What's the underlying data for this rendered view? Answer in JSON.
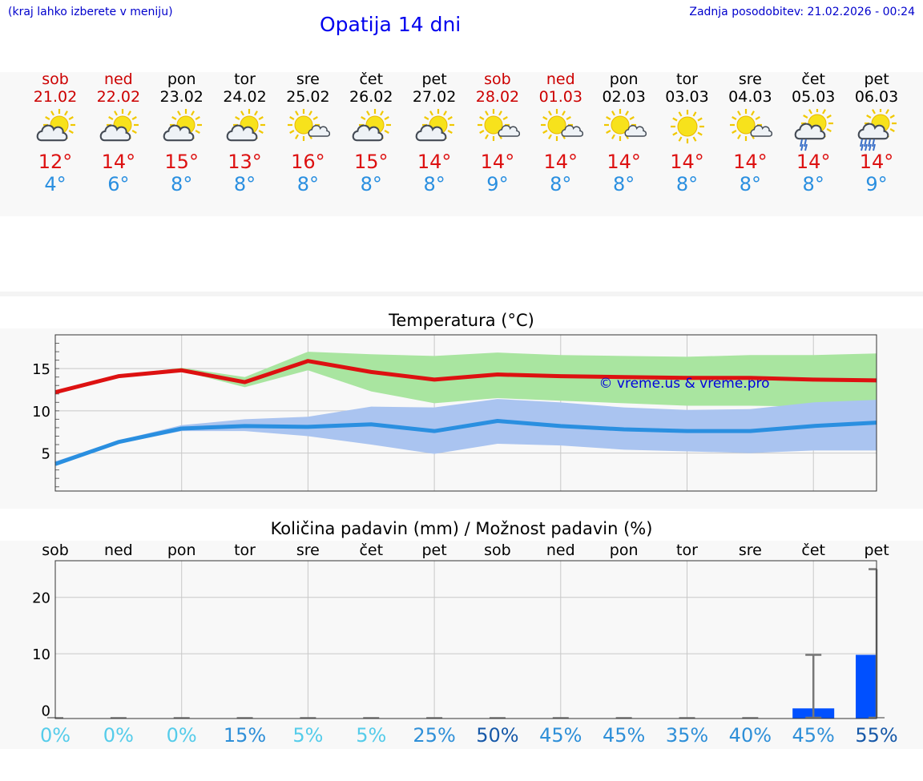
{
  "header": {
    "hint": "(kraj lahko izberete v meniju)",
    "title": "Opatija 14 dni",
    "updated": "Zadnja posodobitev: 21.02.2026 - 00:24"
  },
  "colors": {
    "max_temp": "#dd1111",
    "min_temp": "#2a8fe0",
    "max_band": "#a9e5a0",
    "min_band": "#aac4f0",
    "precip_bar": "#0050ff"
  },
  "days": [
    {
      "name": "sob",
      "date": "21.02",
      "weekend": true,
      "max": "12°",
      "min": "4°",
      "icon": "sun-cloud-icon"
    },
    {
      "name": "ned",
      "date": "22.02",
      "weekend": true,
      "max": "14°",
      "min": "6°",
      "icon": "sun-cloud-icon"
    },
    {
      "name": "pon",
      "date": "23.02",
      "weekend": false,
      "max": "15°",
      "min": "8°",
      "icon": "sun-cloud-icon"
    },
    {
      "name": "tor",
      "date": "24.02",
      "weekend": false,
      "max": "13°",
      "min": "8°",
      "icon": "sun-cloud-icon"
    },
    {
      "name": "sre",
      "date": "25.02",
      "weekend": false,
      "max": "16°",
      "min": "8°",
      "icon": "sun-small-cloud-icon"
    },
    {
      "name": "čet",
      "date": "26.02",
      "weekend": false,
      "max": "15°",
      "min": "8°",
      "icon": "sun-cloud-icon"
    },
    {
      "name": "pet",
      "date": "27.02",
      "weekend": false,
      "max": "14°",
      "min": "8°",
      "icon": "sun-cloud-icon"
    },
    {
      "name": "sob",
      "date": "28.02",
      "weekend": true,
      "max": "14°",
      "min": "9°",
      "icon": "sun-small-cloud-icon"
    },
    {
      "name": "ned",
      "date": "01.03",
      "weekend": true,
      "max": "14°",
      "min": "8°",
      "icon": "sun-small-cloud-icon"
    },
    {
      "name": "pon",
      "date": "02.03",
      "weekend": false,
      "max": "14°",
      "min": "8°",
      "icon": "sun-small-cloud-icon"
    },
    {
      "name": "tor",
      "date": "03.03",
      "weekend": false,
      "max": "14°",
      "min": "8°",
      "icon": "sun-icon"
    },
    {
      "name": "sre",
      "date": "04.03",
      "weekend": false,
      "max": "14°",
      "min": "8°",
      "icon": "sun-small-cloud-icon"
    },
    {
      "name": "čet",
      "date": "05.03",
      "weekend": false,
      "max": "14°",
      "min": "8°",
      "icon": "sun-cloud-light-rain-icon"
    },
    {
      "name": "pet",
      "date": "06.03",
      "weekend": false,
      "max": "14°",
      "min": "9°",
      "icon": "sun-cloud-rain-icon"
    }
  ],
  "chart_data": [
    {
      "type": "line",
      "title": "Temperatura (°C)",
      "watermark": "© vreme.us & vreme.pro",
      "x": [
        "sob",
        "ned",
        "pon",
        "tor",
        "sre",
        "čet",
        "pet",
        "sob",
        "ned",
        "pon",
        "tor",
        "sre",
        "čet",
        "pet"
      ],
      "ylim": [
        0.5,
        19
      ],
      "yticks": [
        5,
        10,
        15
      ],
      "series": [
        {
          "name": "max",
          "values": [
            12.2,
            14.1,
            14.8,
            13.4,
            15.9,
            14.6,
            13.7,
            14.3,
            14.1,
            14.0,
            13.9,
            13.9,
            13.7,
            13.6
          ]
        },
        {
          "name": "max_low",
          "values": [
            12.0,
            14.0,
            14.7,
            12.8,
            14.8,
            12.3,
            10.9,
            11.5,
            11.2,
            10.9,
            10.6,
            10.6,
            10.5,
            10.2
          ]
        },
        {
          "name": "max_high",
          "values": [
            12.4,
            14.2,
            15.1,
            14.0,
            17.0,
            16.7,
            16.5,
            16.9,
            16.6,
            16.5,
            16.4,
            16.6,
            16.6,
            16.8
          ]
        },
        {
          "name": "min",
          "values": [
            3.7,
            6.3,
            7.9,
            8.2,
            8.1,
            8.4,
            7.6,
            8.8,
            8.2,
            7.8,
            7.6,
            7.6,
            8.2,
            8.6
          ]
        },
        {
          "name": "min_low",
          "values": [
            3.5,
            6.1,
            7.6,
            7.6,
            7.0,
            6.0,
            4.9,
            6.1,
            5.9,
            5.4,
            5.2,
            5.0,
            5.3,
            5.3
          ]
        },
        {
          "name": "min_high",
          "values": [
            4.0,
            6.5,
            8.3,
            9.0,
            9.3,
            10.5,
            10.4,
            11.4,
            11.0,
            10.4,
            10.1,
            10.2,
            11.0,
            11.3
          ]
        }
      ]
    },
    {
      "type": "bar",
      "title": "Količina padavin (mm) / Možnost padavin (%)",
      "categories": [
        "sob",
        "ned",
        "pon",
        "tor",
        "sre",
        "čet",
        "pet",
        "sob",
        "ned",
        "pon",
        "tor",
        "sre",
        "čet",
        "pet"
      ],
      "ylim": [
        -1.5,
        26.5
      ],
      "yticks": [
        0,
        10,
        20
      ],
      "values": [
        0,
        0,
        0,
        0,
        0,
        0,
        0,
        0,
        0,
        0,
        0,
        0,
        0.3,
        9.8
      ],
      "error_max": [
        0,
        0,
        0,
        0,
        0,
        0,
        0,
        0,
        0,
        0,
        0,
        0,
        9.8,
        25.0
      ],
      "probability": [
        "0%",
        "0%",
        "0%",
        "15%",
        "5%",
        "5%",
        "25%",
        "50%",
        "45%",
        "45%",
        "35%",
        "40%",
        "45%",
        "55%"
      ]
    }
  ]
}
